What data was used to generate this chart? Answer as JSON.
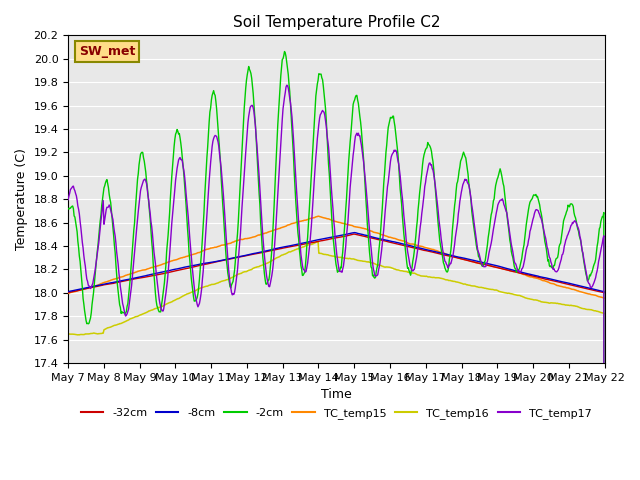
{
  "title": "Soil Temperature Profile C2",
  "xlabel": "Time",
  "ylabel": "Temperature (C)",
  "ylim": [
    17.4,
    20.2
  ],
  "xlim_days": [
    0,
    15
  ],
  "yticks": [
    17.4,
    17.6,
    17.8,
    18.0,
    18.2,
    18.4,
    18.6,
    18.8,
    19.0,
    19.2,
    19.4,
    19.6,
    19.8,
    20.0,
    20.2
  ],
  "xtick_labels": [
    "May 7",
    "May 8",
    "May 9",
    "May 10",
    "May 11",
    "May 12",
    "May 13",
    "May 14",
    "May 15",
    "May 16",
    "May 17",
    "May 18",
    "May 19",
    "May 20",
    "May 21",
    "May 22"
  ],
  "xtick_positions": [
    0,
    1,
    2,
    3,
    4,
    5,
    6,
    7,
    8,
    9,
    10,
    11,
    12,
    13,
    14,
    15
  ],
  "plot_bg_color": "#e8e8e8",
  "line_colors": {
    "neg32cm": "#cc0000",
    "neg8cm": "#0000cc",
    "neg2cm": "#00cc00",
    "TC_temp15": "#ff8800",
    "TC_temp16": "#cccc00",
    "TC_temp17": "#8800cc"
  },
  "legend_labels": [
    "-32cm",
    "-8cm",
    "-2cm",
    "TC_temp15",
    "TC_temp16",
    "TC_temp17"
  ],
  "sw_met_label": "SW_met",
  "sw_met_text_color": "#880000",
  "sw_met_box_color": "#ffdd88",
  "sw_met_edge_color": "#888800"
}
